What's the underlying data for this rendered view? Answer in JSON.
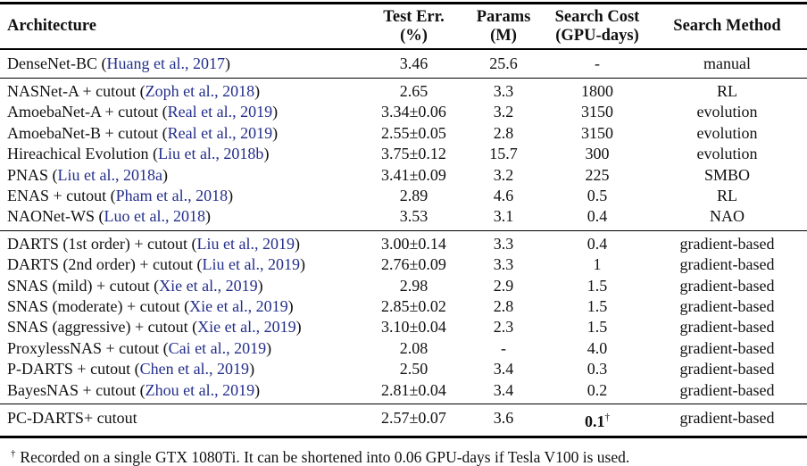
{
  "colors": {
    "background": "#ffffff",
    "text": "#111111",
    "rule": "#000000",
    "citation_link": "#232e8a"
  },
  "table": {
    "headers": {
      "arch": "Architecture",
      "err_line1": "Test Err.",
      "err_line2": "(%)",
      "params_line1": "Params",
      "params_line2": "(M)",
      "cost_line1": "Search Cost",
      "cost_line2": "(GPU-days)",
      "method": "Search Method"
    },
    "groups": [
      {
        "rows": [
          {
            "arch": "DenseNet-BC",
            "cite": "Huang et al., 2017",
            "test_err": "3.46",
            "params": "25.6",
            "cost": "-",
            "cost_bold": false,
            "cost_sup": "",
            "method": "manual"
          }
        ]
      },
      {
        "rows": [
          {
            "arch": "NASNet-A + cutout",
            "cite": "Zoph et al., 2018",
            "test_err": "2.65",
            "params": "3.3",
            "cost": "1800",
            "cost_bold": false,
            "cost_sup": "",
            "method": "RL"
          },
          {
            "arch": "AmoebaNet-A + cutout",
            "cite": "Real et al., 2019",
            "test_err": "3.34±0.06",
            "params": "3.2",
            "cost": "3150",
            "cost_bold": false,
            "cost_sup": "",
            "method": "evolution"
          },
          {
            "arch": "AmoebaNet-B + cutout",
            "cite": "Real et al., 2019",
            "test_err": "2.55±0.05",
            "params": "2.8",
            "cost": "3150",
            "cost_bold": false,
            "cost_sup": "",
            "method": "evolution"
          },
          {
            "arch": "Hireachical Evolution",
            "cite": "Liu et al., 2018b",
            "test_err": "3.75±0.12",
            "params": "15.7",
            "cost": "300",
            "cost_bold": false,
            "cost_sup": "",
            "method": "evolution"
          },
          {
            "arch": "PNAS",
            "cite": "Liu et al., 2018a",
            "test_err": "3.41±0.09",
            "params": "3.2",
            "cost": "225",
            "cost_bold": false,
            "cost_sup": "",
            "method": "SMBO"
          },
          {
            "arch": "ENAS + cutout",
            "cite": "Pham et al., 2018",
            "test_err": "2.89",
            "params": "4.6",
            "cost": "0.5",
            "cost_bold": false,
            "cost_sup": "",
            "method": "RL"
          },
          {
            "arch": "NAONet-WS",
            "cite": "Luo et al., 2018",
            "test_err": "3.53",
            "params": "3.1",
            "cost": "0.4",
            "cost_bold": false,
            "cost_sup": "",
            "method": "NAO"
          }
        ]
      },
      {
        "rows": [
          {
            "arch": "DARTS (1st order) + cutout",
            "cite": "Liu et al., 2019",
            "test_err": "3.00±0.14",
            "params": "3.3",
            "cost": "0.4",
            "cost_bold": false,
            "cost_sup": "",
            "method": "gradient-based"
          },
          {
            "arch": "DARTS (2nd order) + cutout",
            "cite": "Liu et al., 2019",
            "test_err": "2.76±0.09",
            "params": "3.3",
            "cost": "1",
            "cost_bold": false,
            "cost_sup": "",
            "method": "gradient-based"
          },
          {
            "arch": "SNAS (mild) + cutout",
            "cite": "Xie et al., 2019",
            "test_err": "2.98",
            "params": "2.9",
            "cost": "1.5",
            "cost_bold": false,
            "cost_sup": "",
            "method": "gradient-based"
          },
          {
            "arch": "SNAS (moderate) + cutout",
            "cite": "Xie et al., 2019",
            "test_err": "2.85±0.02",
            "params": "2.8",
            "cost": "1.5",
            "cost_bold": false,
            "cost_sup": "",
            "method": "gradient-based"
          },
          {
            "arch": "SNAS (aggressive) + cutout",
            "cite": "Xie et al., 2019",
            "test_err": "3.10±0.04",
            "params": "2.3",
            "cost": "1.5",
            "cost_bold": false,
            "cost_sup": "",
            "method": "gradient-based"
          },
          {
            "arch": "ProxylessNAS + cutout",
            "cite": "Cai et al., 2019",
            "test_err": "2.08",
            "params": "-",
            "cost": "4.0",
            "cost_bold": false,
            "cost_sup": "",
            "method": "gradient-based"
          },
          {
            "arch": "P-DARTS + cutout",
            "cite": "Chen et al., 2019",
            "test_err": "2.50",
            "params": "3.4",
            "cost": "0.3",
            "cost_bold": false,
            "cost_sup": "",
            "method": "gradient-based"
          },
          {
            "arch": "BayesNAS + cutout",
            "cite": "Zhou et al., 2019",
            "test_err": "2.81±0.04",
            "params": "3.4",
            "cost": "0.2",
            "cost_bold": false,
            "cost_sup": "",
            "method": "gradient-based"
          }
        ]
      },
      {
        "rows": [
          {
            "arch": "PC-DARTS+ cutout",
            "cite": null,
            "test_err": "2.57±0.07",
            "params": "3.6",
            "cost": "0.1",
            "cost_bold": true,
            "cost_sup": "†",
            "method": "gradient-based"
          }
        ]
      }
    ],
    "footnote": {
      "marker": "†",
      "text": "Recorded on a single GTX 1080Ti. It can be shortened into 0.06 GPU-days if Tesla V100 is used."
    }
  }
}
